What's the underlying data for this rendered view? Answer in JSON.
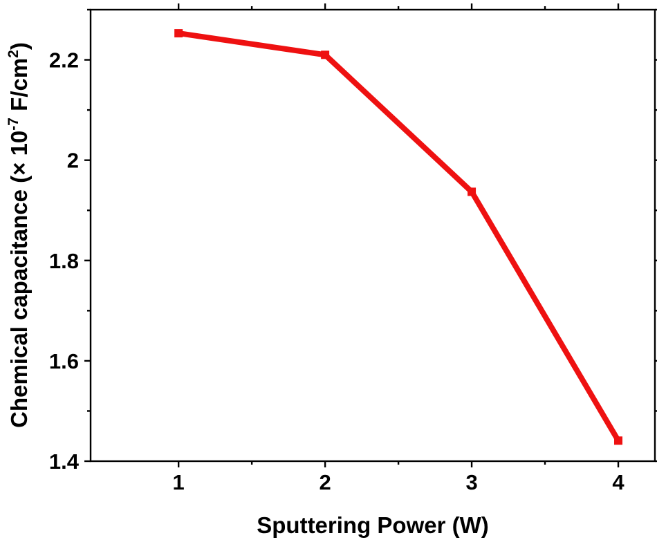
{
  "chart_data": {
    "type": "line",
    "title": "",
    "xlabel": "Sputtering Power (W)",
    "ylabel": {
      "main": "Chemical capacitance (",
      "times": "×",
      "base": " 10",
      "exp": "-7",
      "unit": " F/cm",
      "unit_exp": "2",
      "close": ")"
    },
    "x": [
      1,
      2,
      3,
      4
    ],
    "series": [
      {
        "values": [
          2.253,
          2.21,
          1.937,
          1.441
        ],
        "color": "#ee1111",
        "marker": "square"
      }
    ],
    "xlim": [
      0.4,
      4.25
    ],
    "ylim": [
      1.4,
      2.3
    ],
    "x_ticks": [
      1,
      2,
      3,
      4
    ],
    "x_tick_labels": [
      "1",
      "2",
      "3",
      "4"
    ],
    "x_minor_ticks": [
      1.5,
      2.5,
      3.5
    ],
    "y_ticks": [
      1.4,
      1.6,
      1.8,
      2.0,
      2.2
    ],
    "y_tick_labels": [
      "1.4",
      "1.6",
      "1.8",
      "2",
      "2.2"
    ],
    "y_minor_ticks": [
      1.5,
      1.7,
      1.9,
      2.1,
      2.3
    ],
    "grid": false,
    "legend": "none"
  }
}
